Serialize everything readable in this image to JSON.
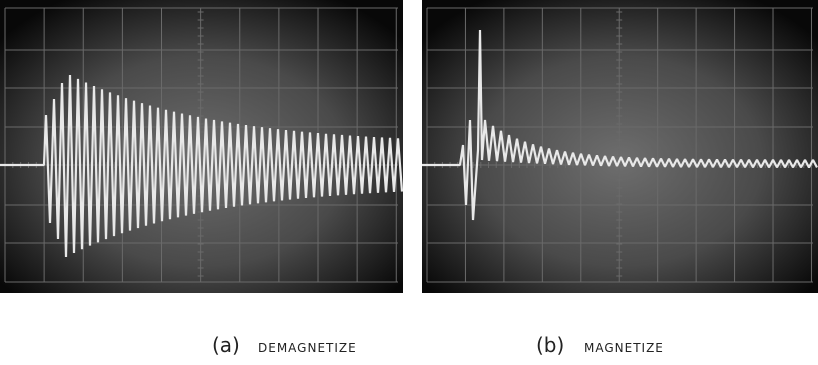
{
  "panels": [
    {
      "letter": "(a)",
      "caption": "DEMAGNETIZE"
    },
    {
      "letter": "(b)",
      "caption": "MAGNETIZE"
    }
  ]
}
